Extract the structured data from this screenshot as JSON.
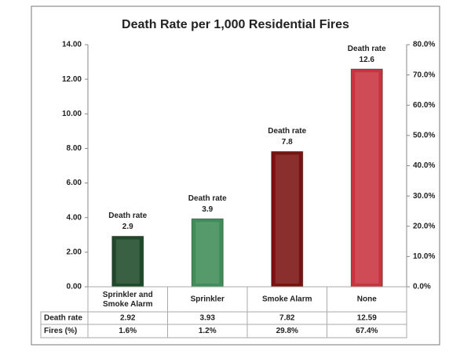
{
  "chart_data": {
    "type": "bar",
    "title": "Death Rate per 1,000 Residential Fires",
    "categories": [
      "Sprinkler and Smoke Alarm",
      "Sprinkler",
      "Smoke Alarm",
      "None"
    ],
    "series": [
      {
        "name": "Death rate",
        "colors": [
          "#1f4a2a",
          "#3f8d58",
          "#7a1212",
          "#c9333f"
        ],
        "values": [
          2.92,
          3.93,
          7.82,
          12.59
        ],
        "value_labels": [
          "2.9",
          "3.9",
          "7.8",
          "12.6"
        ]
      },
      {
        "name": "Fires (%)",
        "axis": "y2",
        "values": [
          1.6,
          1.2,
          29.8,
          67.4
        ],
        "value_labels": [
          "1.6%",
          "1.2%",
          "29.8%",
          "67.4%"
        ]
      }
    ],
    "ylim": [
      0,
      14
    ],
    "yticks": [
      {
        "value": 0,
        "label": "0.00"
      },
      {
        "value": 2,
        "label": "2.00"
      },
      {
        "value": 4,
        "label": "4.00"
      },
      {
        "value": 6,
        "label": "6.00"
      },
      {
        "value": 8,
        "label": "8.00"
      },
      {
        "value": 10,
        "label": "10.00"
      },
      {
        "value": 12,
        "label": "12.00"
      },
      {
        "value": 14,
        "label": "14.00"
      }
    ],
    "y2lim": [
      0,
      80
    ],
    "y2ticks": [
      {
        "value": 0,
        "label": "0.0%"
      },
      {
        "value": 10,
        "label": "10.0%"
      },
      {
        "value": 20,
        "label": "20.0%"
      },
      {
        "value": 30,
        "label": "30.0%"
      },
      {
        "value": 40,
        "label": "40.0%"
      },
      {
        "value": 50,
        "label": "50.0%"
      },
      {
        "value": 60,
        "label": "60.0%"
      },
      {
        "value": 70,
        "label": "70.0%"
      },
      {
        "value": 80,
        "label": "80.0%"
      }
    ]
  }
}
